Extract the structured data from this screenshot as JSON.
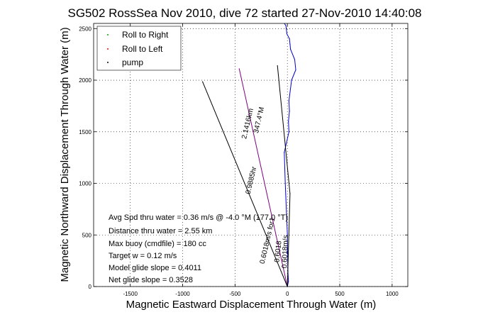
{
  "chart_data": {
    "type": "line",
    "title": "SG502 RossSea Nov 2010, dive 72 started 27-Nov-2010 14:40:08",
    "xlabel": "Magnetic Eastward Displacement Through Water (m)",
    "ylabel": "Magnetic Northward Displacement Through Water (m)",
    "xlim": [
      -1850,
      1150
    ],
    "ylim": [
      0,
      2550
    ],
    "xticks": [
      -1500,
      -1000,
      -500,
      0,
      500,
      1000
    ],
    "yticks": [
      0,
      500,
      1000,
      1500,
      2000,
      2500
    ],
    "xtick_labels": [
      "-1500",
      "-1000",
      "-500",
      "0",
      "500",
      "1000"
    ],
    "ytick_labels": [
      "0",
      "500",
      "1000",
      "1500",
      "2000",
      "2500"
    ],
    "grid": true,
    "legend": {
      "placement": "top-left",
      "entries": [
        {
          "label": "Roll to Right",
          "color": "#00aa00"
        },
        {
          "label": "Roll to Left",
          "color": "#ff0000"
        },
        {
          "label": "pump",
          "color": "#000000"
        }
      ]
    },
    "series": [
      {
        "color": "#0000cc",
        "x": [
          0,
          10,
          5,
          0,
          -20,
          -30,
          15,
          10,
          20,
          15,
          40,
          80,
          70,
          30,
          25,
          20,
          -5,
          -10,
          -15,
          -30
        ],
        "y": [
          0,
          50,
          150,
          500,
          1000,
          1300,
          1500,
          1600,
          1700,
          1800,
          2000,
          2100,
          2200,
          2300,
          2350,
          2400,
          2450,
          2500,
          2530,
          2560
        ]
      },
      {
        "color": "#800080",
        "x": [
          0,
          -460
        ],
        "y": [
          0,
          2110
        ]
      },
      {
        "color": "#000000",
        "x": [
          0,
          -810
        ],
        "y": [
          0,
          1985
        ]
      },
      {
        "color": "#000000",
        "x": [
          0,
          25,
          -95
        ],
        "y": [
          0,
          900,
          2140
        ]
      }
    ],
    "annotations": [
      "347.4°M",
      "2.1416km",
      "0.9885hr",
      "0.6018m/s for1",
      "0.6018",
      "0.6018m/s"
    ],
    "stats": [
      {
        "text": "Avg Spd thru water =  0.36 m/s @ -4.0   °M (177.0 °T)"
      },
      {
        "text": "Distance thru water = 2.55 km"
      },
      {
        "text": "Max buoy (cmdfile) = 180 cc"
      },
      {
        "text": "Target w = 0.12 m/s"
      },
      {
        "text": "Model glide slope = 0.4011"
      },
      {
        "text": "Net glide slope = 0.3528"
      }
    ]
  }
}
